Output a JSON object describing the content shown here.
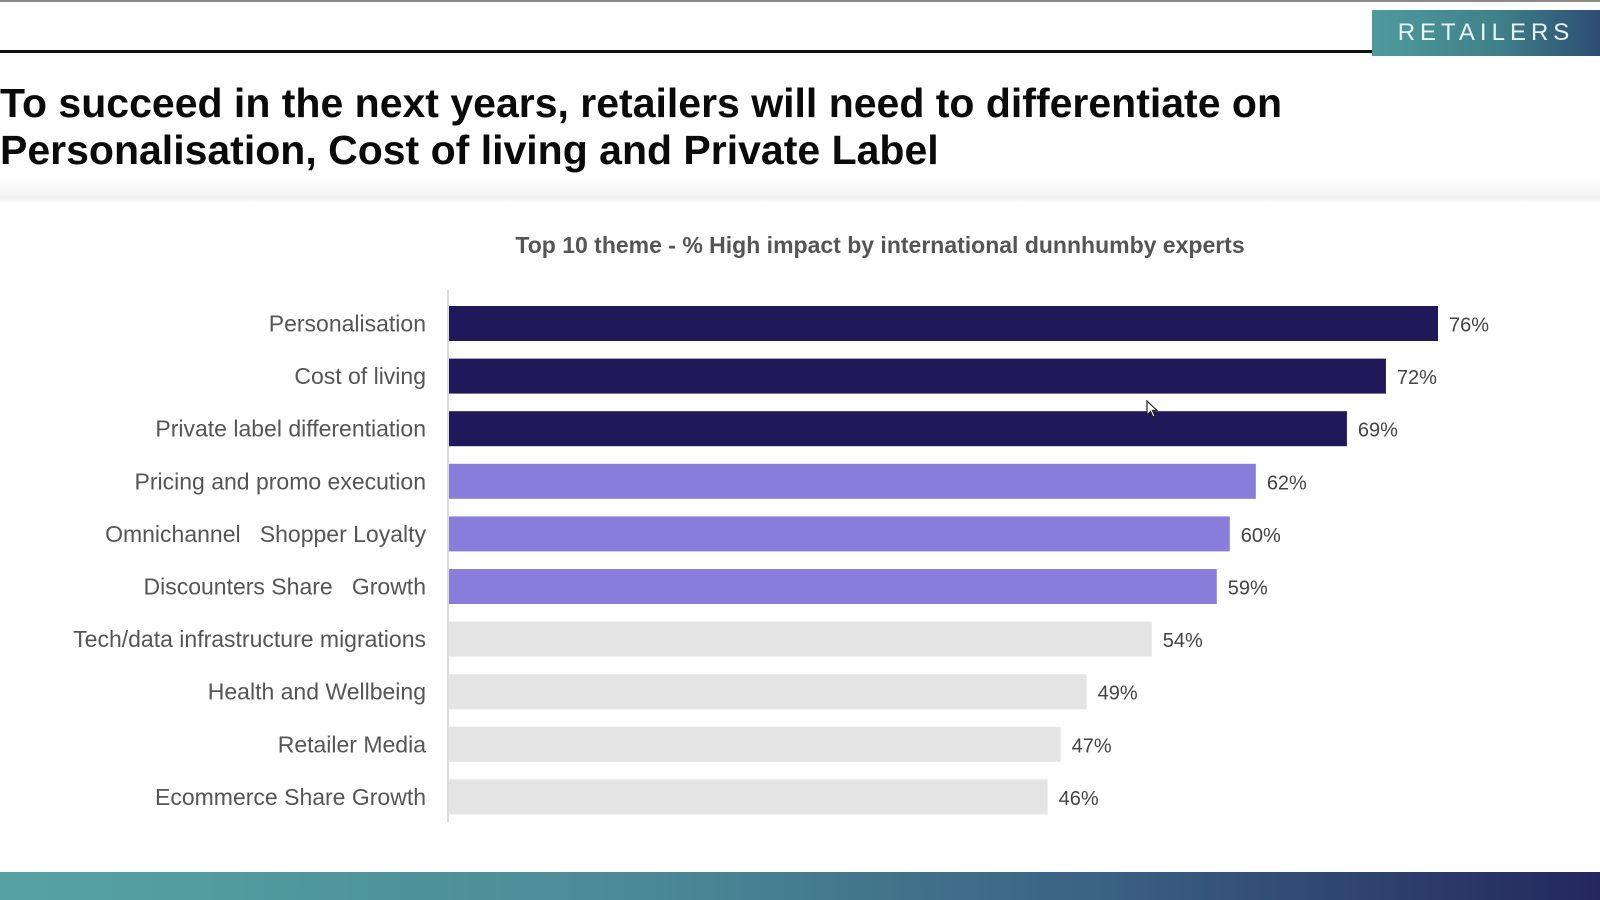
{
  "badge": {
    "label": "RETAILERS"
  },
  "headline": {
    "line1": "To succeed in the next years, retailers will need to differentiate on",
    "line2": "Personalisation, Cost of living and Private Label"
  },
  "colors": {
    "top": "#21185a",
    "mid": "#8b7ddb",
    "low": "#e4e4e4",
    "label": "#555555",
    "value_label": "#444444"
  },
  "chart_data": {
    "type": "bar",
    "orientation": "horizontal",
    "title": "Top 10 theme - % High impact by international dunnhumby experts",
    "xlabel": "",
    "ylabel": "",
    "xlim": [
      0,
      76
    ],
    "grid": false,
    "legend": "none",
    "categories": [
      "Personalisation",
      "Cost of living",
      "Private label differentiation",
      "Pricing and promo execution",
      "Omnichannel   Shopper Loyalty",
      "Discounters Share   Growth",
      "Tech/data infrastructure migrations",
      "Health and Wellbeing",
      "Retailer Media",
      "Ecommerce Share Growth"
    ],
    "values": [
      76,
      72,
      69,
      62,
      60,
      59,
      54,
      49,
      47,
      46
    ],
    "data_labels": [
      "76%",
      "72%",
      "69%",
      "62%",
      "60%",
      "59%",
      "54%",
      "49%",
      "47%",
      "46%"
    ],
    "tiers": [
      "top",
      "top",
      "top",
      "mid",
      "mid",
      "mid",
      "low",
      "low",
      "low",
      "low"
    ]
  }
}
